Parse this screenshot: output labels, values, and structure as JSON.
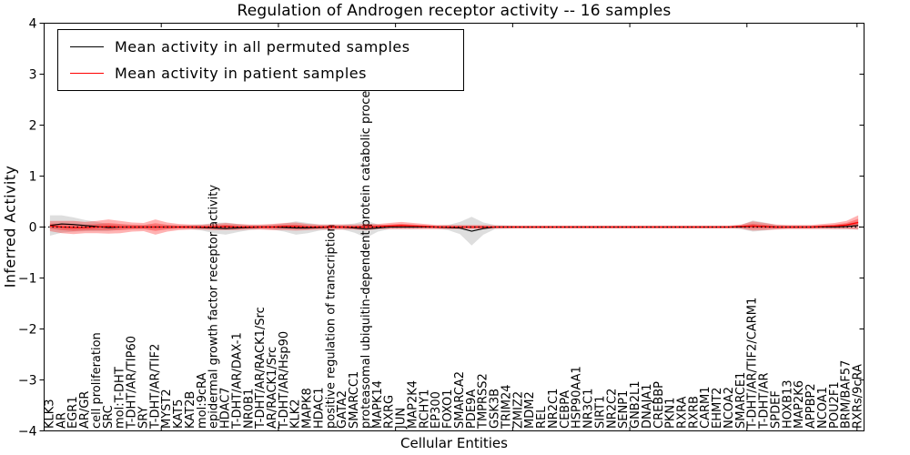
{
  "figure": {
    "title": "Regulation of Androgen receptor activity -- 16 samples",
    "xlabel": "Cellular Entities",
    "ylabel": "Inferred Activity",
    "background": "#ffffff"
  },
  "legend": {
    "entries": [
      {
        "label": "Mean activity in all permuted samples",
        "color": "#000000"
      },
      {
        "label": "Mean activity in patient samples",
        "color": "#ff0000"
      }
    ]
  },
  "chart_data": {
    "type": "line",
    "title": "Regulation of Androgen receptor activity -- 16 samples",
    "xlabel": "Cellular Entities",
    "ylabel": "Inferred Activity",
    "ylim": [
      -4,
      4
    ],
    "yticks": [
      4,
      3,
      2,
      1,
      0,
      -1,
      -2,
      -3,
      -4
    ],
    "x_major_ticks": [
      10,
      20,
      30,
      40,
      50,
      60,
      69.4
    ],
    "grid": false,
    "zero_line": "dotted-black",
    "legend_position": "upper-left",
    "band_colors": {
      "permuted": "rgba(0,0,0,0.13)",
      "patient": "rgba(255,0,0,0.30)"
    },
    "categories": [
      "KLK3",
      "AR",
      "EGR1",
      "AR/GR",
      "cell proliferation",
      "SRC",
      "mol:T-DHT",
      "T-DHT/AR/TIP60",
      "SRY",
      "T-DHT/AR/TIF2",
      "MYST2",
      "KAT5",
      "KAT2B",
      "mol:9cRA",
      "epidermal growth factor receptor activity",
      "HDAC7",
      "T-DHT/AR/DAX-1",
      "NR0B1",
      "T-DHT/AR/RACK1/Src",
      "AR/RACK1/Src",
      "T-DHT/AR/Hsp90",
      "KLK2",
      "MAPK8",
      "HDAC1",
      "positive regulation of transcription",
      "GATA2",
      "SMARCC1",
      "proteasomal ubiquitin-dependent protein catabolic process",
      "MAPK14",
      "RXRG",
      "JUN",
      "MAP2K4",
      "RCHY1",
      "EP300",
      "FOXO1",
      "SMARCA2",
      "PDE9A",
      "TMPRSS2",
      "GSK3B",
      "TRIM24",
      "ZMIZ2",
      "MDM2",
      "REL",
      "NR2C1",
      "CEBPA",
      "HSP90AA1",
      "NR3C1",
      "SIRT1",
      "NR2C2",
      "SENP1",
      "GNB2L1",
      "DNAJA1",
      "CREBBP",
      "PKN1",
      "RXRA",
      "RXRB",
      "CARM1",
      "EHMT2",
      "NCOA2",
      "SMARCE1",
      "T-DHT/AR/TIF2/CARM1",
      "T-DHT/AR",
      "SPDEF",
      "HOXB13",
      "MAP2K6",
      "APPBP2",
      "NCOA1",
      "POU2F1",
      "BRM/BAF57",
      "RXRs/9cRA"
    ],
    "series": [
      {
        "name": "Mean activity in all permuted samples",
        "color": "#000000",
        "mean": [
          0.03,
          0.06,
          0.05,
          0.03,
          0.01,
          -0.01,
          0,
          0,
          0,
          0,
          0,
          0,
          0,
          -0.01,
          -0.02,
          -0.03,
          -0.02,
          -0.01,
          0,
          0,
          -0.01,
          -0.02,
          -0.02,
          -0.01,
          0,
          0,
          -0.02,
          -0.04,
          -0.02,
          0,
          0,
          0,
          0,
          0,
          -0.01,
          -0.02,
          -0.08,
          -0.03,
          0,
          0,
          0,
          0,
          0,
          0,
          0,
          0,
          0,
          0,
          0,
          0,
          0,
          0,
          0,
          0,
          0,
          0,
          0,
          0,
          0,
          0,
          0.02,
          0.01,
          0,
          0,
          0,
          0,
          0,
          0,
          0.01,
          0.03
        ],
        "band": [
          0.2,
          0.17,
          0.14,
          0.11,
          0.09,
          0.07,
          0.05,
          0.04,
          0.04,
          0.04,
          0.04,
          0.03,
          0.04,
          0.06,
          0.1,
          0.12,
          0.08,
          0.05,
          0.04,
          0.05,
          0.08,
          0.13,
          0.1,
          0.06,
          0.05,
          0.05,
          0.09,
          0.17,
          0.07,
          0.04,
          0.04,
          0.04,
          0.03,
          0.03,
          0.05,
          0.12,
          0.28,
          0.12,
          0.04,
          0.03,
          0.02,
          0.02,
          0.02,
          0.02,
          0.02,
          0.02,
          0.02,
          0.02,
          0.02,
          0.02,
          0.02,
          0.02,
          0.02,
          0.02,
          0.02,
          0.02,
          0.02,
          0.02,
          0.02,
          0.04,
          0.11,
          0.08,
          0.04,
          0.03,
          0.03,
          0.03,
          0.03,
          0.04,
          0.05,
          0.08
        ]
      },
      {
        "name": "Mean activity in patient samples",
        "color": "#ff0000",
        "mean": [
          0.02,
          0,
          -0.01,
          -0.01,
          0,
          0.01,
          0,
          0,
          0,
          0,
          0,
          0,
          0,
          0,
          0,
          0.01,
          0,
          0,
          0,
          0,
          0.01,
          0.01,
          0,
          0,
          0,
          0,
          0,
          0,
          0.01,
          0.02,
          0.03,
          0.02,
          0.01,
          0,
          0,
          0,
          0,
          0,
          0,
          0,
          0,
          0,
          0,
          0,
          0,
          0,
          0,
          0,
          0,
          0,
          0,
          0,
          0,
          0,
          0,
          0,
          0,
          0,
          0,
          0.01,
          0.02,
          0.01,
          0,
          0,
          0,
          0,
          0.01,
          0.02,
          0.04,
          0.09
        ],
        "band": [
          0.1,
          0.12,
          0.13,
          0.11,
          0.12,
          0.14,
          0.12,
          0.09,
          0.08,
          0.15,
          0.09,
          0.06,
          0.05,
          0.05,
          0.06,
          0.07,
          0.06,
          0.05,
          0.05,
          0.06,
          0.07,
          0.08,
          0.06,
          0.05,
          0.05,
          0.05,
          0.05,
          0.06,
          0.05,
          0.06,
          0.07,
          0.06,
          0.05,
          0.04,
          0.04,
          0.04,
          0.04,
          0.04,
          0.03,
          0.03,
          0.03,
          0.03,
          0.03,
          0.03,
          0.03,
          0.03,
          0.03,
          0.03,
          0.03,
          0.03,
          0.03,
          0.03,
          0.03,
          0.03,
          0.03,
          0.03,
          0.03,
          0.03,
          0.03,
          0.04,
          0.09,
          0.07,
          0.05,
          0.04,
          0.04,
          0.04,
          0.05,
          0.06,
          0.08,
          0.14
        ]
      }
    ]
  }
}
